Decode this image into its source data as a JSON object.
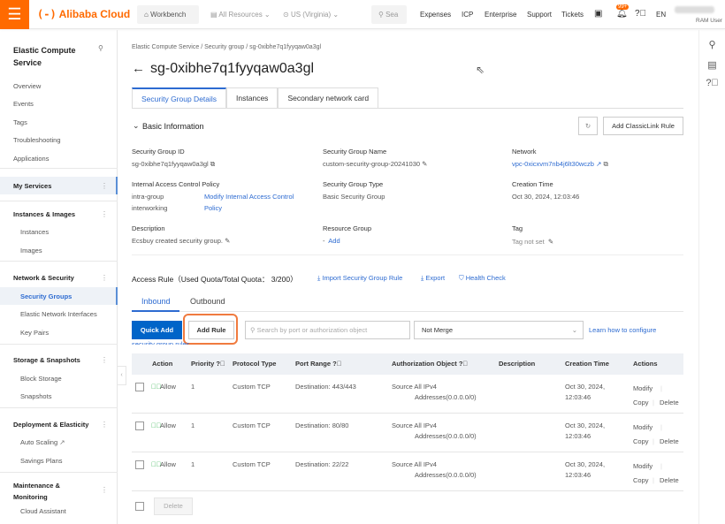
{
  "topbar": {
    "brand": "Alibaba Cloud",
    "workbench": "Workbench",
    "all_resources": "All Resources",
    "region": "US (Virginia)",
    "search_placeholder": "Sea",
    "links": [
      "Expenses",
      "ICP",
      "Enterprise",
      "Support",
      "Tickets"
    ],
    "badge": "99+",
    "lang": "EN",
    "user_role": "RAM User"
  },
  "sidebar": {
    "title": "Elastic Compute Service",
    "top_items": [
      "Overview",
      "Events",
      "Tags",
      "Troubleshooting",
      "Applications"
    ],
    "my_services": "My Services",
    "groups": [
      {
        "label": "Instances & Images",
        "items": [
          "Instances",
          "Images"
        ]
      },
      {
        "label": "Network & Security",
        "items": [
          "Security Groups",
          "Elastic Network Interfaces",
          "Key Pairs"
        ]
      },
      {
        "label": "Storage & Snapshots",
        "items": [
          "Block Storage",
          "Snapshots"
        ]
      },
      {
        "label": "Deployment & Elasticity",
        "items": [
          "Auto Scaling",
          "Savings Plans"
        ]
      },
      {
        "label": "Maintenance & Monitoring",
        "items": [
          "Cloud Assistant"
        ]
      }
    ],
    "active": "Security Groups"
  },
  "breadcrumb": [
    "Elastic Compute Service",
    "Security group",
    "sg-0xibhe7q1fyyqaw0a3gl"
  ],
  "page_title": "sg-0xibhe7q1fyyqaw0a3gl",
  "tabs": [
    "Security Group Details",
    "Instances",
    "Secondary network card"
  ],
  "basic": {
    "title": "Basic Information",
    "add_classiclink": "Add ClassicLink Rule",
    "sg_id_label": "Security Group ID",
    "sg_id": "sg-0xibhe7q1fyyqaw0a3gl",
    "sg_name_label": "Security Group Name",
    "sg_name": "custom-security-group-20241030",
    "network_label": "Network",
    "network": "vpc-0xicxvm7nb4j6lt30wczb",
    "iacp_label": "Internal Access Control Policy",
    "iacp_value_1": "intra-group",
    "iacp_value_2": "interworking",
    "iacp_link_1": "Modify Internal Access Control",
    "iacp_link_2": "Policy",
    "type_label": "Security Group Type",
    "type": "Basic Security Group",
    "ctime_label": "Creation Time",
    "ctime": "Oct 30, 2024, 12:03:46",
    "desc_label": "Description",
    "desc": "Ecsbuy created security group.",
    "rg_label": "Resource Group",
    "rg_dash": "-",
    "rg_add": "Add",
    "tag_label": "Tag",
    "tag": "Tag not set"
  },
  "access": {
    "title": "Access Rule（Used Quota/Total Quota： 3/200）",
    "import": "Import Security Group Rule",
    "export": "Export",
    "health": "Health Check",
    "tabs": [
      "Inbound",
      "Outbound"
    ],
    "quick_add": "Quick Add",
    "add_rule": "Add Rule",
    "search_placeholder": "Search by port or authorization object",
    "merge": "Not Merge",
    "learn_1": "Learn how to configure",
    "learn_2": "security group rules",
    "columns": [
      "Action",
      "Priority",
      "Protocol Type",
      "Port Range",
      "Authorization Object",
      "Description",
      "Creation Time",
      "Actions"
    ],
    "rows": [
      {
        "action": "Allow",
        "priority": "1",
        "protocol": "Custom TCP",
        "port": "Destination: 443/443",
        "auth_1": "Source All IPv4",
        "auth_2": "Addresses(0.0.0.0/0)",
        "time_1": "Oct 30, 2024,",
        "time_2": "12:03:46"
      },
      {
        "action": "Allow",
        "priority": "1",
        "protocol": "Custom TCP",
        "port": "Destination: 80/80",
        "auth_1": "Source All IPv4",
        "auth_2": "Addresses(0.0.0.0/0)",
        "time_1": "Oct 30, 2024,",
        "time_2": "12:03:46"
      },
      {
        "action": "Allow",
        "priority": "1",
        "protocol": "Custom TCP",
        "port": "Destination: 22/22",
        "auth_1": "Source All IPv4",
        "auth_2": "Addresses(0.0.0.0/0)",
        "time_1": "Oct 30, 2024,",
        "time_2": "12:03:46"
      }
    ],
    "modify": "Modify",
    "copy": "Copy",
    "delete": "Delete",
    "bulk_delete": "Delete"
  },
  "colors": {
    "brand": "#ff6a00",
    "link": "#2d6bd1",
    "primary": "#0064c8",
    "highlight": "#f07b3f",
    "allow": "#2db34a"
  }
}
